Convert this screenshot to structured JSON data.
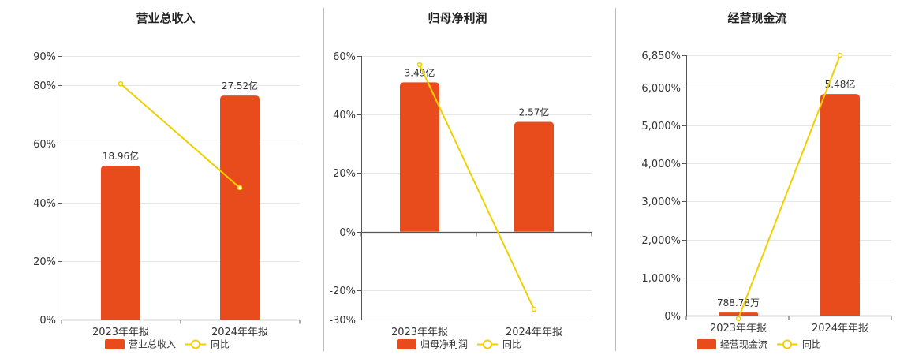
{
  "colors": {
    "bar": "#e84c1c",
    "line": "#f0d000",
    "grid": "#e6e6e6",
    "axis": "#555555",
    "separator": "#bbbbbb"
  },
  "chart_data": [
    {
      "type": "bar",
      "title": "营业总收入",
      "categories": [
        "2023年年报",
        "2024年年报"
      ],
      "bar_labels": [
        "18.96亿",
        "27.52亿"
      ],
      "bar_values": [
        52.5,
        76.5
      ],
      "line_values": [
        80.5,
        45
      ],
      "ylim": [
        0,
        90
      ],
      "yticks": [
        0,
        20,
        40,
        60,
        80,
        90
      ],
      "ytick_labels": [
        "0%",
        "20%",
        "40%",
        "60%",
        "80%",
        "90%"
      ],
      "legend": {
        "bar": "营业总收入",
        "line": "同比"
      }
    },
    {
      "type": "bar",
      "title": "归母净利润",
      "categories": [
        "2023年年报",
        "2024年年报"
      ],
      "bar_labels": [
        "3.49亿",
        "2.57亿"
      ],
      "bar_values": [
        51,
        37.5
      ],
      "line_values": [
        57,
        -26.5
      ],
      "ylim": [
        -30,
        60
      ],
      "yticks": [
        -30,
        -20,
        0,
        20,
        40,
        60
      ],
      "ytick_labels": [
        "-30%",
        "-20%",
        "0%",
        "20%",
        "40%",
        "60%"
      ],
      "legend": {
        "bar": "归母净利润",
        "line": "同比"
      }
    },
    {
      "type": "bar",
      "title": "经营现金流",
      "categories": [
        "2023年年报",
        "2024年年报"
      ],
      "bar_labels": [
        "788.78万",
        "5.48亿"
      ],
      "bar_values": [
        80,
        5830
      ],
      "line_values": [
        -80,
        6850
      ],
      "ylim": [
        0,
        6850
      ],
      "yticks": [
        0,
        1000,
        2000,
        3000,
        4000,
        5000,
        6000,
        6850
      ],
      "ytick_labels": [
        "0%",
        "1,000%",
        "2,000%",
        "3,000%",
        "4,000%",
        "5,000%",
        "6,000%",
        "6,850%"
      ],
      "legend": {
        "bar": "经营现金流",
        "line": "同比"
      }
    }
  ]
}
